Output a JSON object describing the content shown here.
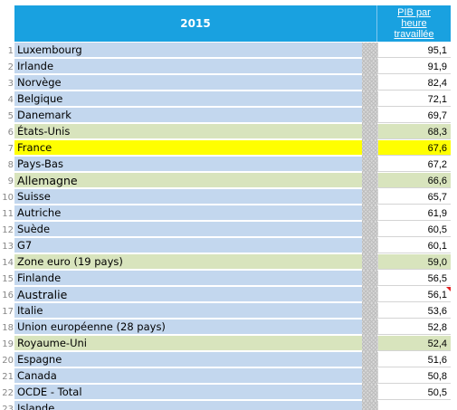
{
  "header": {
    "year": "2015",
    "metric_line1": "PIB par",
    "metric_line2": "heure",
    "metric_line3": "travaillée"
  },
  "rows": [
    {
      "num": "1",
      "country": "Luxembourg",
      "value": "95,1",
      "style": "blue"
    },
    {
      "num": "2",
      "country": "Irlande",
      "value": "91,9",
      "style": "blue"
    },
    {
      "num": "3",
      "country": "Norvège",
      "value": "82,4",
      "style": "blue"
    },
    {
      "num": "4",
      "country": "Belgique",
      "value": "72,1",
      "style": "blue"
    },
    {
      "num": "5",
      "country": "Danemark",
      "value": "69,7",
      "style": "blue"
    },
    {
      "num": "6",
      "country": "États-Unis",
      "value": "68,3",
      "style": "green"
    },
    {
      "num": "7",
      "country": "France",
      "value": "67,6",
      "style": "yellow"
    },
    {
      "num": "8",
      "country": "Pays-Bas",
      "value": "67,2",
      "style": "blue"
    },
    {
      "num": "9",
      "country": "Allemagne",
      "value": "66,6",
      "style": "green"
    },
    {
      "num": "10",
      "country": "Suisse",
      "value": "65,7",
      "style": "blue"
    },
    {
      "num": "11",
      "country": "Autriche",
      "value": "61,9",
      "style": "blue"
    },
    {
      "num": "12",
      "country": "Suède",
      "value": "60,5",
      "style": "blue"
    },
    {
      "num": "13",
      "country": "G7",
      "value": "60,1",
      "style": "blue"
    },
    {
      "num": "14",
      "country": "Zone euro (19 pays)",
      "value": "59,0",
      "style": "green"
    },
    {
      "num": "15",
      "country": "Finlande",
      "value": "56,5",
      "style": "blue"
    },
    {
      "num": "16",
      "country": "Australie",
      "value": "56,1",
      "style": "blue"
    },
    {
      "num": "17",
      "country": "Italie",
      "value": "53,6",
      "style": "blue"
    },
    {
      "num": "18",
      "country": "Union européenne (28 pays)",
      "value": "52,8",
      "style": "blue"
    },
    {
      "num": "19",
      "country": "Royaume-Uni",
      "value": "52,4",
      "style": "green"
    },
    {
      "num": "20",
      "country": "Espagne",
      "value": "51,6",
      "style": "blue"
    },
    {
      "num": "21",
      "country": "Canada",
      "value": "50,8",
      "style": "blue"
    },
    {
      "num": "22",
      "country": "OCDE - Total",
      "value": "50,5",
      "style": "blue"
    },
    {
      "num": "23",
      "country": "Islande",
      "value": "",
      "style": "blue"
    }
  ]
}
